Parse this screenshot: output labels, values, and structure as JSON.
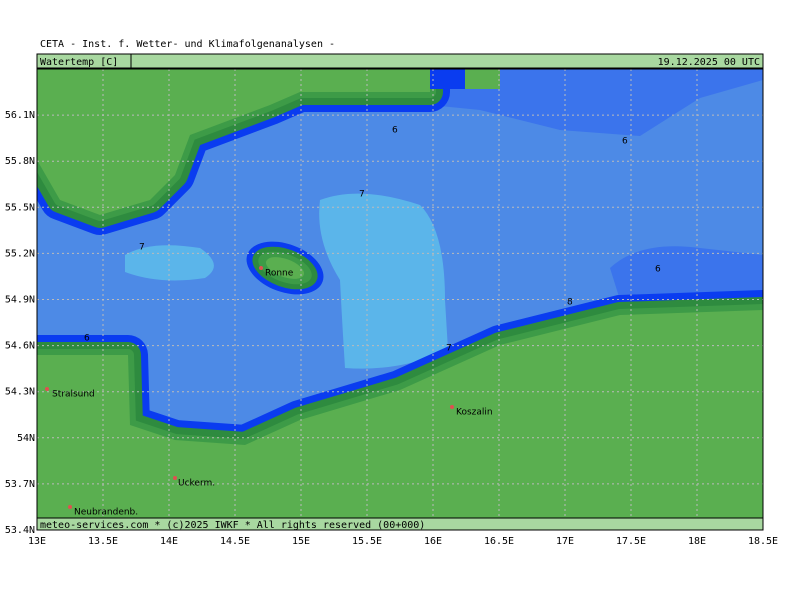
{
  "header": "CETA - Inst. f. Wetter- und Klimafolgenanalysen -",
  "variable": "Watertemp [C]",
  "valid_time": "19.12.2025 00 UTC",
  "footer": "meteo-services.com * (c)2025 IWKF * All rights reserved (00+000)",
  "map": {
    "lon_range": [
      13,
      18.5
    ],
    "lat_range": [
      53.4,
      56.4
    ],
    "lon_ticks": [
      {
        "value": 13,
        "label": "13E"
      },
      {
        "value": 13.5,
        "label": "13.5E"
      },
      {
        "value": 14,
        "label": "14E"
      },
      {
        "value": 14.5,
        "label": "14.5E"
      },
      {
        "value": 15,
        "label": "15E"
      },
      {
        "value": 15.5,
        "label": "15.5E"
      },
      {
        "value": 16,
        "label": "16E"
      },
      {
        "value": 16.5,
        "label": "16.5E"
      },
      {
        "value": 17,
        "label": "17E"
      },
      {
        "value": 17.5,
        "label": "17.5E"
      },
      {
        "value": 18,
        "label": "18E"
      },
      {
        "value": 18.5,
        "label": "18.5E"
      }
    ],
    "lat_ticks": [
      {
        "value": 53.4,
        "label": "53.4N"
      },
      {
        "value": 53.7,
        "label": "53.7N"
      },
      {
        "value": 54,
        "label": "54N"
      },
      {
        "value": 54.3,
        "label": "54.3N"
      },
      {
        "value": 54.6,
        "label": "54.6N"
      },
      {
        "value": 54.9,
        "label": "54.9N"
      },
      {
        "value": 55.2,
        "label": "55.2N"
      },
      {
        "value": 55.5,
        "label": "55.5N"
      },
      {
        "value": 55.8,
        "label": "55.8N"
      },
      {
        "value": 56.1,
        "label": "56.1N"
      }
    ]
  },
  "contour_labels": [
    "6",
    "6",
    "6",
    "7",
    "7",
    "7",
    "8",
    "6"
  ],
  "cities": [
    "Ronne",
    "Stralsund",
    "Koszalin",
    "Uckerm.",
    "Neubrandenb."
  ]
}
